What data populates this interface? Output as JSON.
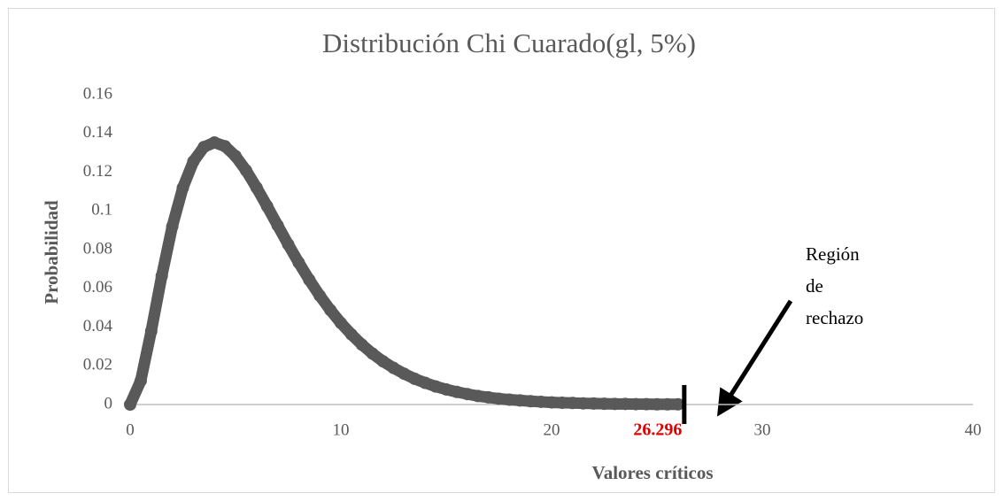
{
  "chart_data": {
    "type": "scatter",
    "title": "Distribución Chi Cuarado(gl, 5%)",
    "xlabel": "Valores críticos",
    "ylabel": "Probabilidad",
    "color": "#595959",
    "x": [
      0,
      0.5,
      1,
      1.5,
      2,
      2.5,
      3,
      3.5,
      4,
      4.5,
      5,
      5.5,
      6,
      6.5,
      7,
      7.5,
      8,
      8.5,
      9,
      9.5,
      10,
      10.5,
      11,
      11.5,
      12,
      12.5,
      13,
      13.5,
      14,
      14.5,
      15,
      15.5,
      16,
      16.5,
      17,
      17.5,
      18,
      18.5,
      19,
      19.5,
      20,
      20.5,
      21,
      21.5,
      22,
      22.5,
      23,
      23.5,
      24,
      24.5,
      25,
      25.5,
      26
    ],
    "values": [
      0,
      0.0122,
      0.0379,
      0.0664,
      0.092,
      0.1119,
      0.1255,
      0.133,
      0.1353,
      0.1334,
      0.1283,
      0.1209,
      0.112,
      0.1024,
      0.0925,
      0.0827,
      0.0733,
      0.0644,
      0.0562,
      0.0488,
      0.0421,
      0.0362,
      0.0309,
      0.0263,
      0.0223,
      0.0189,
      0.0159,
      0.0133,
      0.0112,
      0.0093,
      0.0078,
      0.0065,
      0.0054,
      0.0044,
      0.0037,
      0.003,
      0.0025,
      0.0021,
      0.0017,
      0.0014,
      0.0011,
      0.0009,
      0.0008,
      0.0006,
      0.0005,
      0.0004,
      0.0003,
      0.0003,
      0.0002,
      0.0002,
      0.0001,
      0.0001,
      0.0001
    ],
    "critical_value": 26.296,
    "annotation": [
      "Región",
      "de",
      "rechazo"
    ],
    "xlim": [
      0,
      40
    ],
    "xticks": [
      0,
      10,
      20,
      30,
      40
    ],
    "ylim": [
      0,
      0.16
    ],
    "yticks": [
      0,
      0.02,
      0.04,
      0.06,
      0.08,
      0.1,
      0.12,
      0.14,
      0.16
    ]
  }
}
